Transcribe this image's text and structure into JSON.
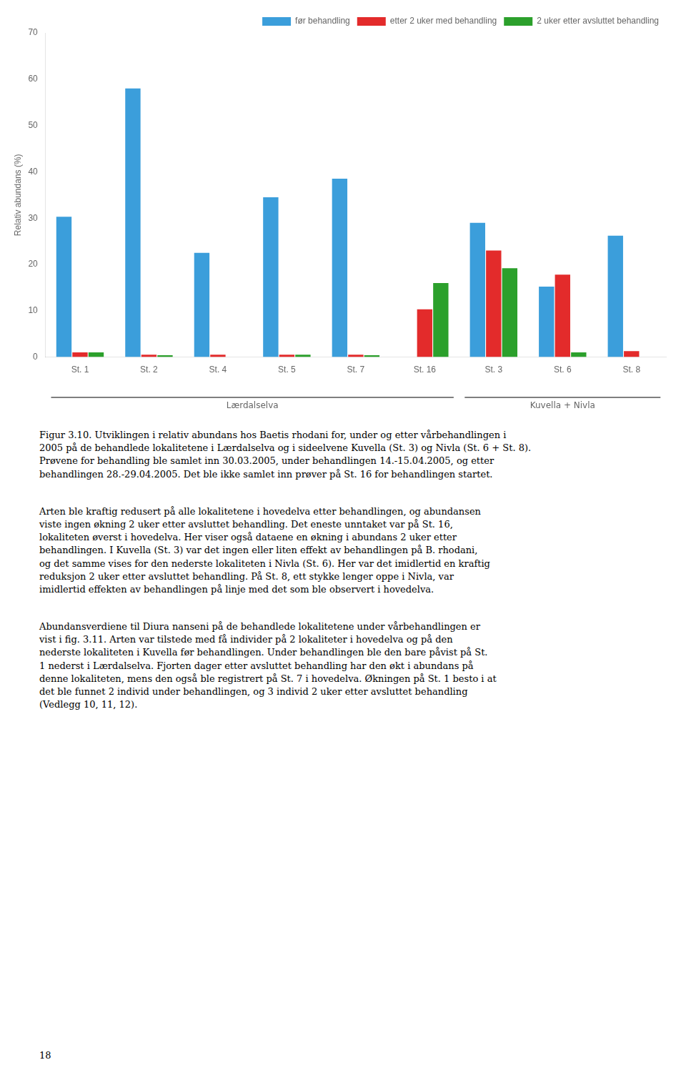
{
  "chart_data": {
    "type": "bar",
    "categories": [
      "St. 1",
      "St. 2",
      "St. 4",
      "St. 5",
      "St. 7",
      "St. 16",
      "St. 3",
      "St. 6",
      "St. 8"
    ],
    "series": [
      {
        "name": "før behandling",
        "color": "#3b9edb",
        "values": [
          30.3,
          58.0,
          22.5,
          34.5,
          38.5,
          0.0,
          29.0,
          15.2,
          26.2
        ]
      },
      {
        "name": "etter 2 uker med behandling",
        "color": "#e32b2b",
        "values": [
          1.0,
          0.5,
          0.5,
          0.5,
          0.5,
          10.3,
          23.0,
          17.8,
          1.3
        ]
      },
      {
        "name": "2 uker etter avsluttet behandling",
        "color": "#2ca02c",
        "values": [
          1.0,
          0.4,
          0.0,
          0.5,
          0.4,
          16.0,
          19.2,
          1.0,
          0.0
        ]
      }
    ],
    "ylabel": "Relativ abundans (%)",
    "ylim": [
      0,
      70
    ],
    "yticks": [
      0,
      10,
      20,
      30,
      40,
      50,
      60,
      70
    ],
    "grid": false,
    "legend": "upper right",
    "groups": [
      {
        "name": "Lærdalselva",
        "categories": [
          "St. 1",
          "St. 2",
          "St. 4",
          "St. 5",
          "St. 7",
          "St. 16"
        ]
      },
      {
        "name": "Kuvella + Nivla",
        "categories": [
          "St. 3",
          "St. 6",
          "St. 8"
        ]
      }
    ],
    "annotations": [
      "Figur 3.10. Utviklingen i relativ abundans hos Baetis rhodani for, under og etter vårbehandlingen i\n2005 på de behandlede lokalitetene i Lærdalselva og i sideelvene Kuvella (St. 3) og Nivla (St. 6 + St. 8).\nPrøvene for behandling ble samlet inn 30.03.2005, under behandlingen 14.-15.04.2005, og etter\nbehandlingen 28.-29.04.2005. Det ble ikke samlet inn prøver på St. 16 for behandlingen startet.",
      "Arten ble kraftig redusert på alle lokalitetene i hovedelva etter behandlingen, og abundansen\nviste ingen økning 2 uker etter avsluttet behandling. Det eneste unntaket var på St. 16,\nlokaliteten øverst i hovedelva. Her viser også dataene en økning i abundans 2 uker etter\nbehandlingen. I Kuvella (St. 3) var det ingen eller liten effekt av behandlingen på B. rhodani,\nog det samme vises for den nederste lokaliteten i Nivla (St. 6). Her var det imidlertid en kraftig\nreduksjon 2 uker etter avsluttet behandling. På St. 8, ett stykke lenger oppe i Nivla, var\nimidlertid effekten av behandlingen på linje med det som ble observert i hovedelva.",
      "Abundansverdiene til Diura nanseni på de behandlede lokalitetene under vårbehandlingen er\nvist i fig. 3.11. Arten var tilstede med få individer på 2 lokaliteter i hovedelva og på den\nnederste lokaliteten i Kuvella før behandlingen. Under behandlingen ble den bare påvist på St.\n1 nederst i Lærdalselva. Fjorten dager etter avsluttet behandling har den økt i abundans på\ndenne lokaliteten, mens den også ble registrert på St. 7 i hovedelva. Økningen på St. 1 besto i at\ndet ble funnet 2 individ under behandlingen, og 3 individ 2 uker etter avsluttet behandling\n(Vedlegg 10, 11, 12).",
      "18"
    ]
  }
}
